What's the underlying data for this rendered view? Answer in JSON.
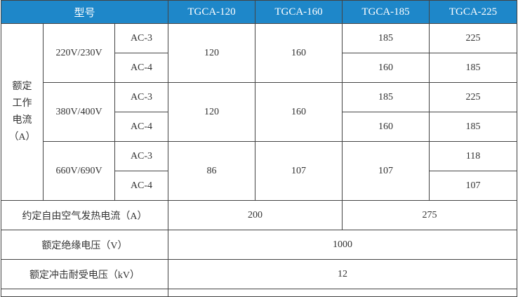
{
  "header": {
    "model": "型号",
    "models": [
      "TGCA-120",
      "TGCA-160",
      "TGCA-185",
      "TGCA-225"
    ]
  },
  "rated_current": {
    "label_lines": [
      "额定",
      "工作",
      "电流",
      "（A）"
    ],
    "groups": [
      {
        "voltage": "220V/230V",
        "ac3": "AC-3",
        "ac4": "AC-4",
        "tgca120": "120",
        "tgca160": "160",
        "tgca185": [
          "185",
          "160"
        ],
        "tgca225": [
          "225",
          "185"
        ]
      },
      {
        "voltage": "380V/400V",
        "ac3": "AC-3",
        "ac4": "AC-4",
        "tgca120": "120",
        "tgca160": "160",
        "tgca185": [
          "185",
          "160"
        ],
        "tgca225": [
          "225",
          "185"
        ]
      },
      {
        "voltage": "660V/690V",
        "ac3": "AC-3",
        "ac4": "AC-4",
        "tgca120": "86",
        "tgca160": "107",
        "tgca185": "107",
        "tgca225": [
          "118",
          "107"
        ]
      }
    ]
  },
  "free_air_current": {
    "label": "约定自由空气发热电流（A）",
    "value_a": "200",
    "value_b": "275"
  },
  "insulation_voltage": {
    "label": "额定绝缘电压（V）",
    "value": "1000"
  },
  "impulse_voltage": {
    "label": "额定冲击耐受电压（kV）",
    "value": "12"
  },
  "colors": {
    "header_bg": "#1e87c9"
  }
}
